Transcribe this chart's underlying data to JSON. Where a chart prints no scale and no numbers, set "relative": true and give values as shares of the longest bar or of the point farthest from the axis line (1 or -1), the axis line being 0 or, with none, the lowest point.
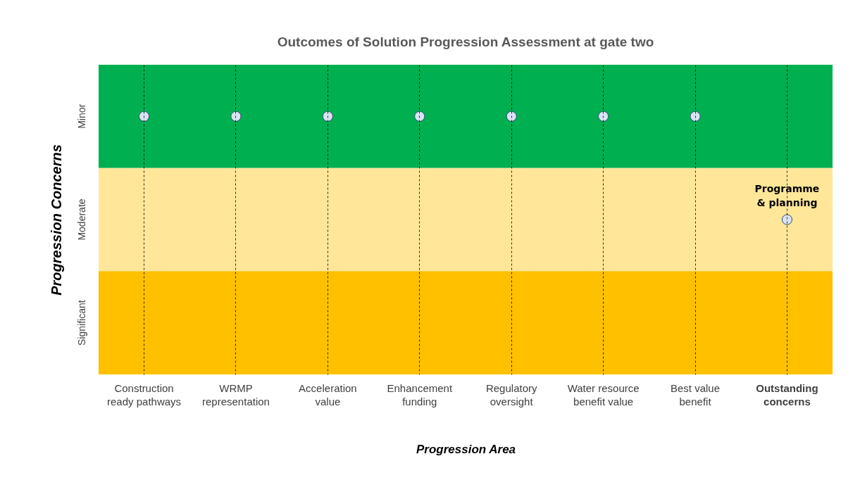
{
  "chart_data": {
    "type": "scatter",
    "title": "Outcomes of Solution Progression Assessment at gate two",
    "xlabel": "Progression Area",
    "ylabel": "Progression Concerns",
    "categories": [
      "Construction ready pathways",
      "WRMP representation",
      "Acceleration value",
      "Enhancement funding",
      "Regulatory oversight",
      "Water resource benefit value",
      "Best value benefit",
      "Outstanding concerns"
    ],
    "relative": true,
    "series": [
      {
        "color": "#dae3f3",
        "values": [
          1,
          1,
          1,
          1,
          1,
          1,
          1,
          0.6
        ]
      }
    ],
    "bands": [
      {
        "axis": "y",
        "from": 0.8,
        "to": 1.2,
        "label": "Minor",
        "color": "#00b050"
      },
      {
        "axis": "y",
        "from": 0.4,
        "to": 0.8,
        "label": "Moderate",
        "color": "#ffe699"
      },
      {
        "axis": "y",
        "from": 0,
        "to": 0.4,
        "label": "Significant",
        "color": "#ffc000"
      }
    ],
    "annotations": [
      {
        "text": "Programme & planning",
        "x": "Outstanding concerns",
        "y": 0.6
      }
    ],
    "grid": "x",
    "marker": "circle"
  }
}
